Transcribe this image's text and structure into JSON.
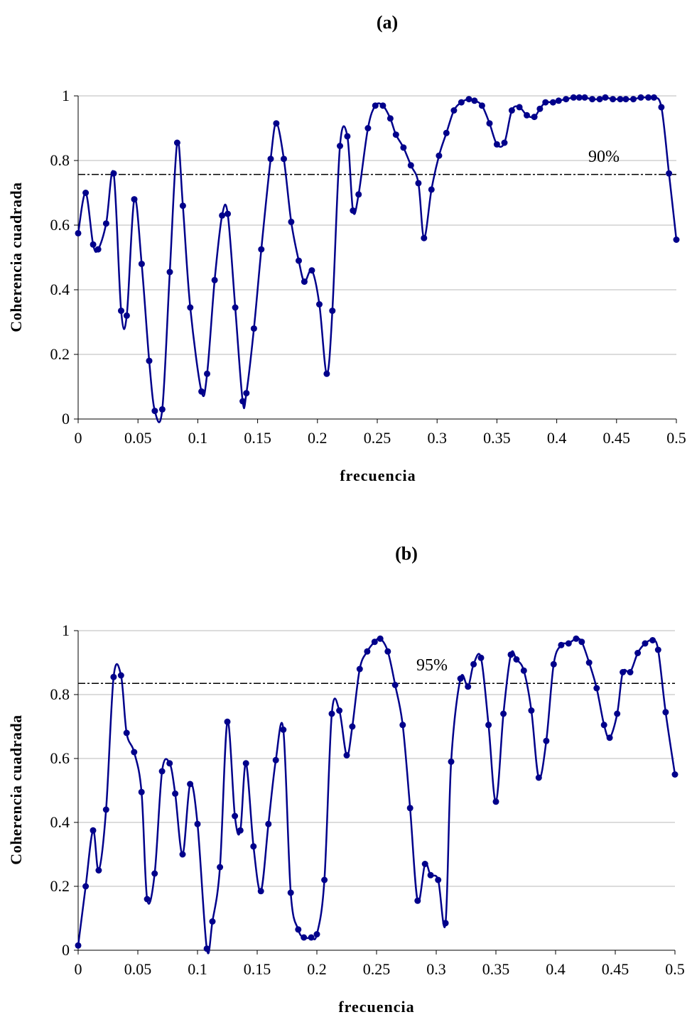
{
  "chart_data": [
    {
      "type": "line",
      "title": "(a)",
      "xlabel": "frecuencia",
      "ylabel": "Coherencia cuadrada",
      "xlim": [
        0,
        0.5
      ],
      "ylim": [
        0,
        1
      ],
      "xticks": [
        "0",
        "0.05",
        "0.1",
        "0.15",
        "0.2",
        "0.25",
        "0.3",
        "0.35",
        "0.4",
        "0.45",
        "0.5"
      ],
      "yticks": [
        "0",
        "0.2",
        "0.4",
        "0.6",
        "0.8",
        "1"
      ],
      "grid": "horizontal",
      "threshold": {
        "value": 0.757,
        "label": "90%"
      },
      "series": [
        {
          "color": "#00008B",
          "x": [
            0,
            0.0063,
            0.0125,
            0.0167,
            0.0234,
            0.0297,
            0.0359,
            0.0406,
            0.0469,
            0.0531,
            0.0594,
            0.0641,
            0.0703,
            0.0766,
            0.0828,
            0.0875,
            0.0937,
            0.1031,
            0.1078,
            0.1141,
            0.1203,
            0.125,
            0.1313,
            0.1375,
            0.1406,
            0.1469,
            0.1531,
            0.1609,
            0.1656,
            0.1719,
            0.1781,
            0.1844,
            0.1891,
            0.1953,
            0.2016,
            0.2078,
            0.2125,
            0.2188,
            0.225,
            0.2297,
            0.2344,
            0.2422,
            0.2484,
            0.2547,
            0.2609,
            0.2656,
            0.2719,
            0.2781,
            0.2844,
            0.2891,
            0.2953,
            0.3016,
            0.3078,
            0.3141,
            0.3203,
            0.3266,
            0.3313,
            0.3375,
            0.3438,
            0.35,
            0.3563,
            0.3625,
            0.3688,
            0.375,
            0.3813,
            0.3859,
            0.3906,
            0.3969,
            0.4016,
            0.4078,
            0.4141,
            0.4188,
            0.4234,
            0.4297,
            0.4359,
            0.4406,
            0.4469,
            0.4531,
            0.4578,
            0.4641,
            0.4703,
            0.4766,
            0.4813,
            0.4875,
            0.4938,
            0.5
          ],
          "values": [
            0.575,
            0.7,
            0.54,
            0.525,
            0.605,
            0.76,
            0.335,
            0.32,
            0.68,
            0.48,
            0.18,
            0.025,
            0.03,
            0.455,
            0.855,
            0.66,
            0.345,
            0.085,
            0.14,
            0.43,
            0.63,
            0.635,
            0.345,
            0.055,
            0.08,
            0.28,
            0.525,
            0.805,
            0.915,
            0.805,
            0.61,
            0.49,
            0.425,
            0.46,
            0.355,
            0.14,
            0.335,
            0.845,
            0.875,
            0.645,
            0.695,
            0.9,
            0.97,
            0.97,
            0.93,
            0.88,
            0.84,
            0.785,
            0.73,
            0.56,
            0.71,
            0.815,
            0.885,
            0.955,
            0.98,
            0.99,
            0.985,
            0.97,
            0.915,
            0.85,
            0.855,
            0.955,
            0.965,
            0.94,
            0.935,
            0.96,
            0.98,
            0.98,
            0.985,
            0.99,
            0.995,
            0.995,
            0.995,
            0.99,
            0.99,
            0.995,
            0.99,
            0.99,
            0.99,
            0.99,
            0.995,
            0.995,
            0.995,
            0.965,
            0.76,
            0.555
          ]
        }
      ]
    },
    {
      "type": "line",
      "title": "(b)",
      "xlabel": "frecuencia",
      "ylabel": "Coherencia cuadrada",
      "xlim": [
        0,
        0.5
      ],
      "ylim": [
        0,
        1
      ],
      "xticks": [
        "0",
        "0.05",
        "0.1",
        "0.15",
        "0.2",
        "0.25",
        "0.3",
        "0.35",
        "0.4",
        "0.45",
        "0.5"
      ],
      "yticks": [
        "0",
        "0.2",
        "0.4",
        "0.6",
        "0.8",
        "1"
      ],
      "grid": "horizontal",
      "threshold": {
        "value": 0.835,
        "label": "95%"
      },
      "series": [
        {
          "color": "#00008B",
          "x": [
            0,
            0.0063,
            0.0125,
            0.0172,
            0.0234,
            0.0297,
            0.0359,
            0.0406,
            0.0469,
            0.0531,
            0.0578,
            0.0641,
            0.0703,
            0.0766,
            0.0813,
            0.0875,
            0.0938,
            0.1,
            0.1078,
            0.1125,
            0.1188,
            0.125,
            0.1313,
            0.1359,
            0.1406,
            0.1469,
            0.1531,
            0.1594,
            0.1656,
            0.1719,
            0.1781,
            0.1844,
            0.1891,
            0.1953,
            0.2,
            0.2063,
            0.2125,
            0.2188,
            0.225,
            0.2297,
            0.2359,
            0.2422,
            0.2484,
            0.2531,
            0.2594,
            0.2656,
            0.2719,
            0.2781,
            0.2844,
            0.2906,
            0.2953,
            0.3016,
            0.3078,
            0.3125,
            0.3203,
            0.3266,
            0.3313,
            0.3375,
            0.3438,
            0.35,
            0.3563,
            0.3625,
            0.3672,
            0.3734,
            0.3797,
            0.3859,
            0.3922,
            0.3984,
            0.4047,
            0.4109,
            0.4172,
            0.4219,
            0.4281,
            0.4344,
            0.4406,
            0.4453,
            0.4516,
            0.4563,
            0.4625,
            0.4688,
            0.475,
            0.4813,
            0.4859,
            0.4922,
            0.5
          ],
          "values": [
            0.015,
            0.2,
            0.375,
            0.25,
            0.44,
            0.855,
            0.86,
            0.68,
            0.62,
            0.495,
            0.16,
            0.24,
            0.56,
            0.585,
            0.49,
            0.3,
            0.52,
            0.395,
            0.005,
            0.09,
            0.26,
            0.715,
            0.42,
            0.375,
            0.585,
            0.325,
            0.185,
            0.395,
            0.595,
            0.69,
            0.18,
            0.065,
            0.04,
            0.04,
            0.05,
            0.22,
            0.74,
            0.75,
            0.61,
            0.7,
            0.88,
            0.935,
            0.965,
            0.975,
            0.935,
            0.83,
            0.705,
            0.445,
            0.155,
            0.27,
            0.235,
            0.22,
            0.085,
            0.59,
            0.85,
            0.825,
            0.895,
            0.915,
            0.705,
            0.465,
            0.74,
            0.925,
            0.91,
            0.875,
            0.75,
            0.54,
            0.655,
            0.895,
            0.955,
            0.96,
            0.975,
            0.965,
            0.9,
            0.82,
            0.705,
            0.665,
            0.74,
            0.87,
            0.87,
            0.93,
            0.96,
            0.97,
            0.94,
            0.745,
            0.55
          ]
        }
      ]
    }
  ]
}
